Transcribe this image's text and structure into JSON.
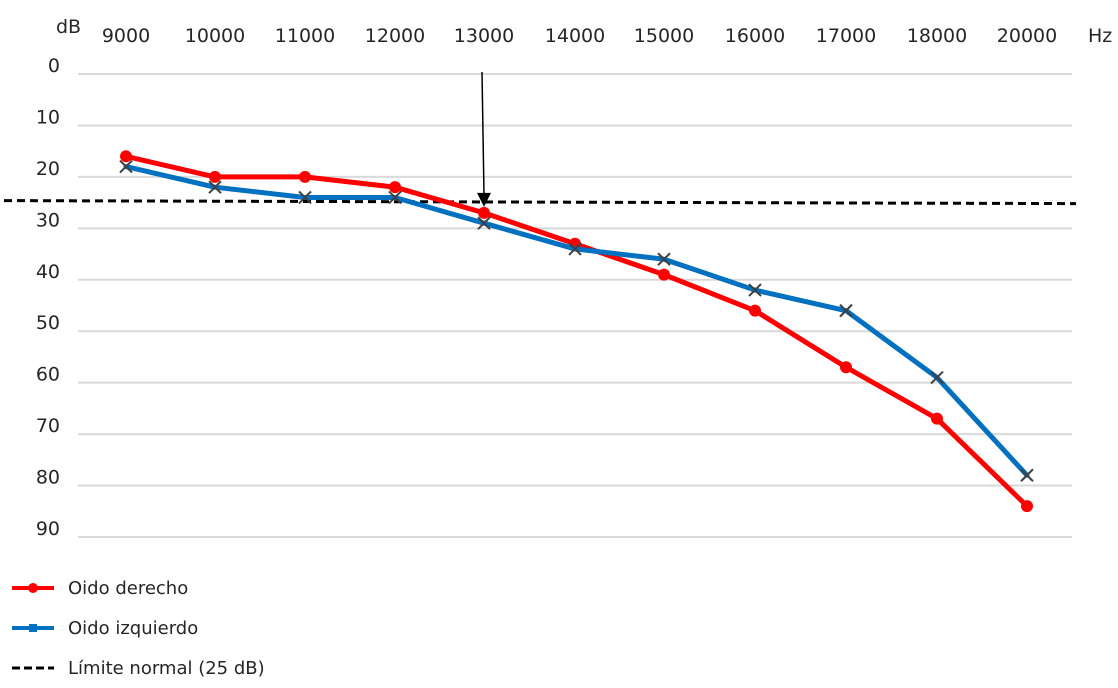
{
  "chart_data": {
    "type": "line",
    "x_unit": "Hz",
    "y_unit": "dB",
    "categories": [
      "9000",
      "10000",
      "11000",
      "12000",
      "13000",
      "14000",
      "15000",
      "16000",
      "17000",
      "18000",
      "20000"
    ],
    "y_ticks": [
      "0",
      "10",
      "20",
      "30",
      "40",
      "50",
      "60",
      "70",
      "80",
      "90"
    ],
    "ylim": [
      0,
      90
    ],
    "y_inverted": true,
    "grid": "horizontal",
    "legend_position": "bottom-left",
    "series": [
      {
        "name": "Oido derecho",
        "color": "#ff0000",
        "marker": "circle",
        "values": [
          16,
          20,
          20,
          22,
          27,
          33,
          39,
          46,
          57,
          67,
          84
        ]
      },
      {
        "name": "Oido izquierdo",
        "color": "#0070c0",
        "marker": "x",
        "values": [
          18,
          22,
          24,
          24,
          29,
          34,
          36,
          42,
          46,
          59,
          78
        ]
      }
    ],
    "reference_line": {
      "name": "Límite normal (25 dB)",
      "value": 25,
      "style": "dashed",
      "color": "#000000"
    },
    "annotation": {
      "type": "arrow",
      "x": "13000",
      "y": 27
    }
  }
}
